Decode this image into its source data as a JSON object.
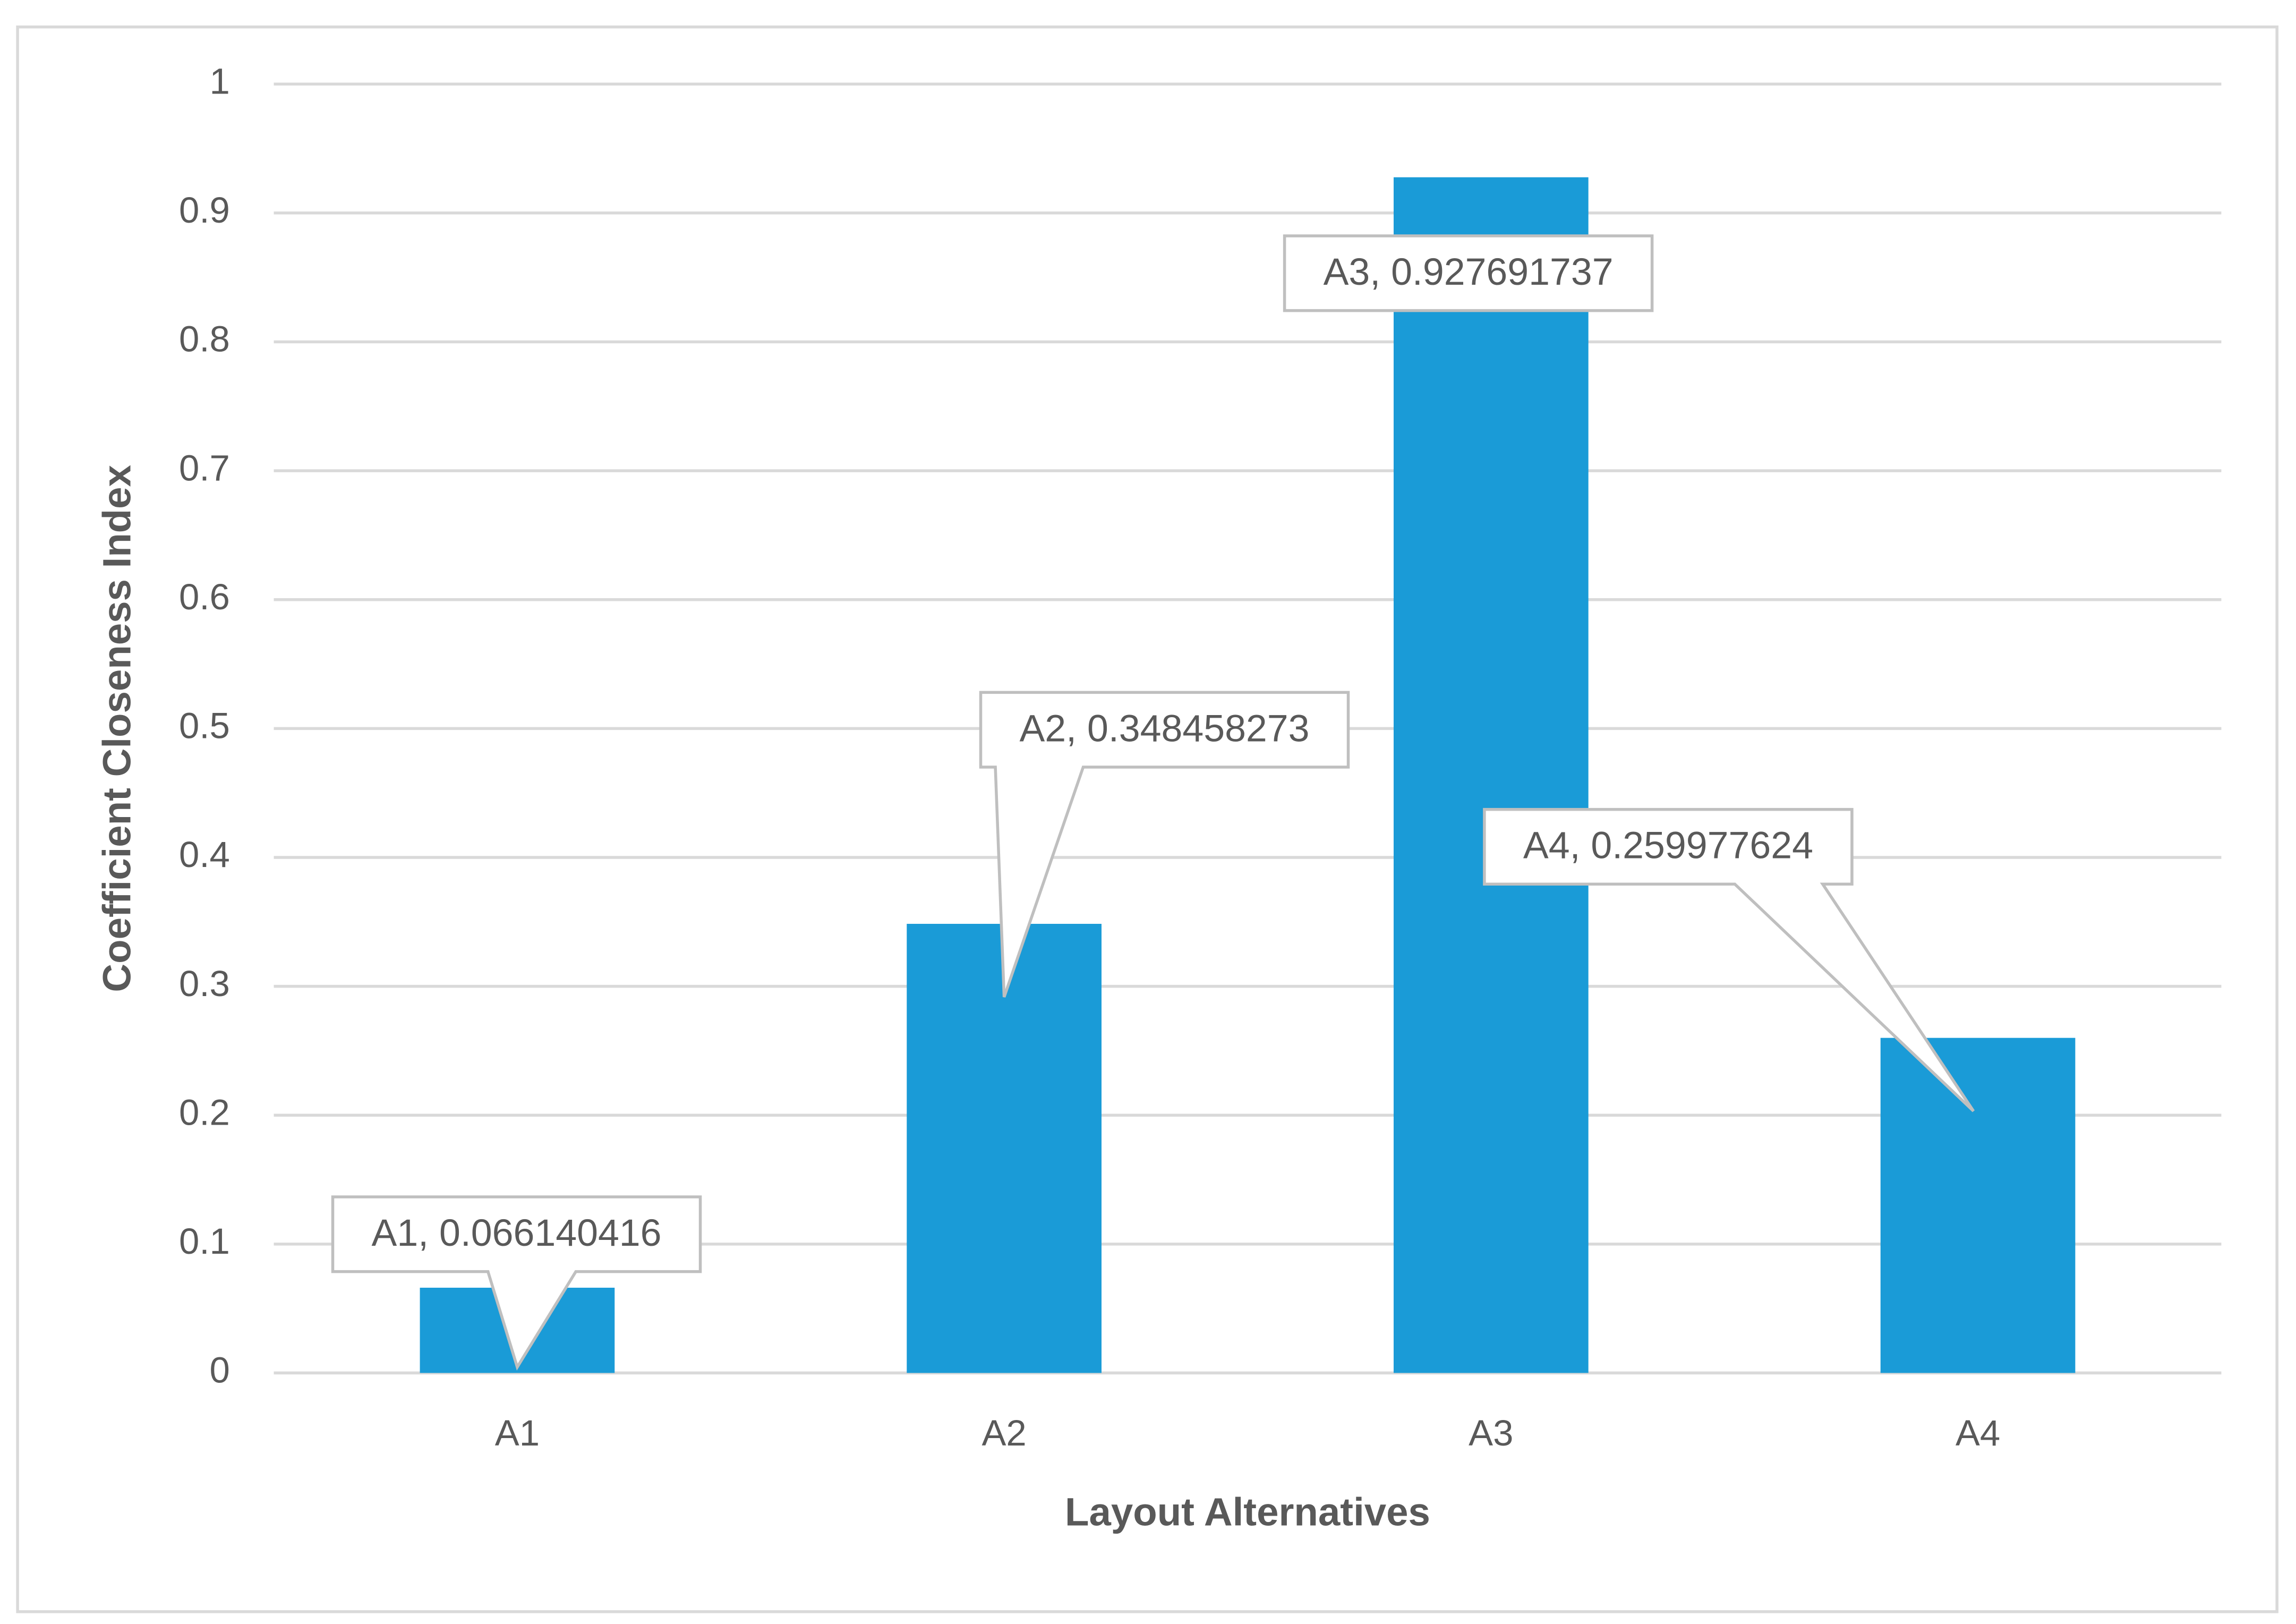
{
  "chart_data": {
    "type": "bar",
    "x_label": "Layout Alternatives",
    "y_label": "Coefficient Closeness Index",
    "categories": [
      "A1",
      "A2",
      "A3",
      "A4"
    ],
    "values": [
      0.066140416,
      0.348458273,
      0.927691737,
      0.259977624
    ],
    "value_labels": [
      "A1, 0.066140416",
      "A2, 0.348458273",
      "A3, 0.927691737",
      "A4, 0.259977624"
    ],
    "color": "#1a9bd7",
    "ylim": [
      0,
      1
    ],
    "yticks": [
      0,
      0.1,
      0.2,
      0.3,
      0.4,
      0.5,
      0.6,
      0.7,
      0.8,
      0.9,
      1
    ],
    "grid": true
  }
}
